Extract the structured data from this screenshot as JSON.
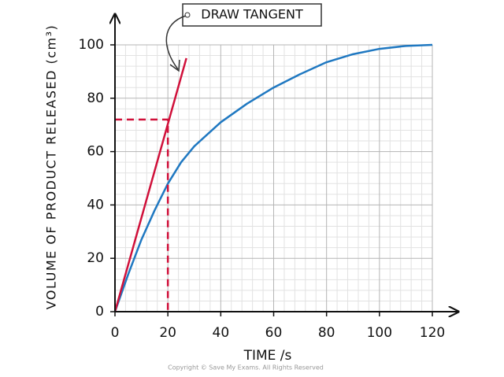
{
  "chart_data": {
    "type": "line",
    "annotation": "DRAW TANGENT",
    "x_label": "TIME /s",
    "y_label": "VOLUME OF PRODUCT RELEASED (cm³)",
    "footer": "Copyright © Save My Exams. All Rights Reserved",
    "xlim": [
      0,
      120
    ],
    "xticks": [
      0,
      20,
      40,
      60,
      80,
      100,
      120
    ],
    "ylim": [
      0,
      100
    ],
    "yticks": [
      0,
      20,
      40,
      60,
      80,
      100
    ],
    "grid": true,
    "series": [
      {
        "color": "#1f78c1",
        "x": [
          0,
          5,
          10,
          15,
          20,
          25,
          30,
          40,
          50,
          60,
          70,
          80,
          90,
          100,
          110,
          120
        ],
        "values": [
          0,
          14,
          27,
          38,
          48,
          56,
          62,
          71,
          78,
          84,
          89,
          93.5,
          96.5,
          98.5,
          99.6,
          100
        ]
      },
      {
        "color": "#d0103a",
        "x": [
          0,
          27
        ],
        "values": [
          0,
          95
        ]
      },
      {
        "color": "#d0103a",
        "dashed": true,
        "x": [
          0,
          20,
          20
        ],
        "values": [
          72,
          72,
          0
        ]
      }
    ]
  }
}
